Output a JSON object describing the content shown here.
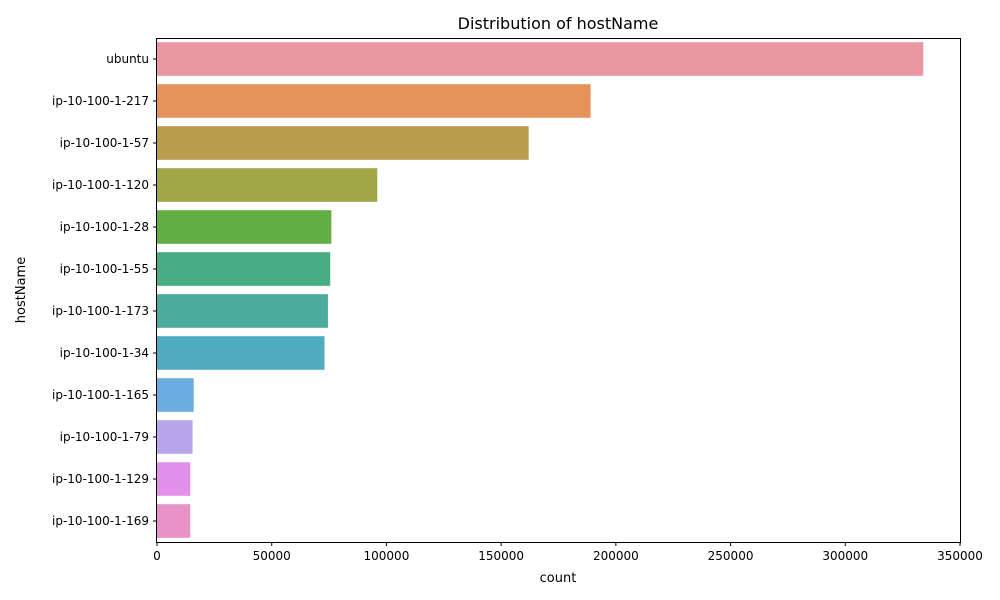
{
  "chart_data": {
    "type": "bar",
    "orientation": "horizontal",
    "title": "Distribution of hostName",
    "xlabel": "count",
    "ylabel": "hostName",
    "xlim": [
      0,
      350000
    ],
    "xticks": [
      0,
      50000,
      100000,
      150000,
      200000,
      250000,
      300000,
      350000
    ],
    "grid": false,
    "legend": "none",
    "categories": [
      "ubuntu",
      "ip-10-100-1-217",
      "ip-10-100-1-57",
      "ip-10-100-1-120",
      "ip-10-100-1-28",
      "ip-10-100-1-55",
      "ip-10-100-1-173",
      "ip-10-100-1-34",
      "ip-10-100-1-165",
      "ip-10-100-1-79",
      "ip-10-100-1-129",
      "ip-10-100-1-169"
    ],
    "values": [
      334000,
      189000,
      162000,
      96000,
      76000,
      75500,
      74500,
      73000,
      16000,
      15500,
      14500,
      14500
    ],
    "colors": [
      "#ea96a3",
      "#e5925b",
      "#b99d4c",
      "#a1a746",
      "#62ae45",
      "#48ad83",
      "#4bab9c",
      "#4eabc0",
      "#6badde",
      "#b7a6ea",
      "#e290e9",
      "#e893c7"
    ]
  }
}
